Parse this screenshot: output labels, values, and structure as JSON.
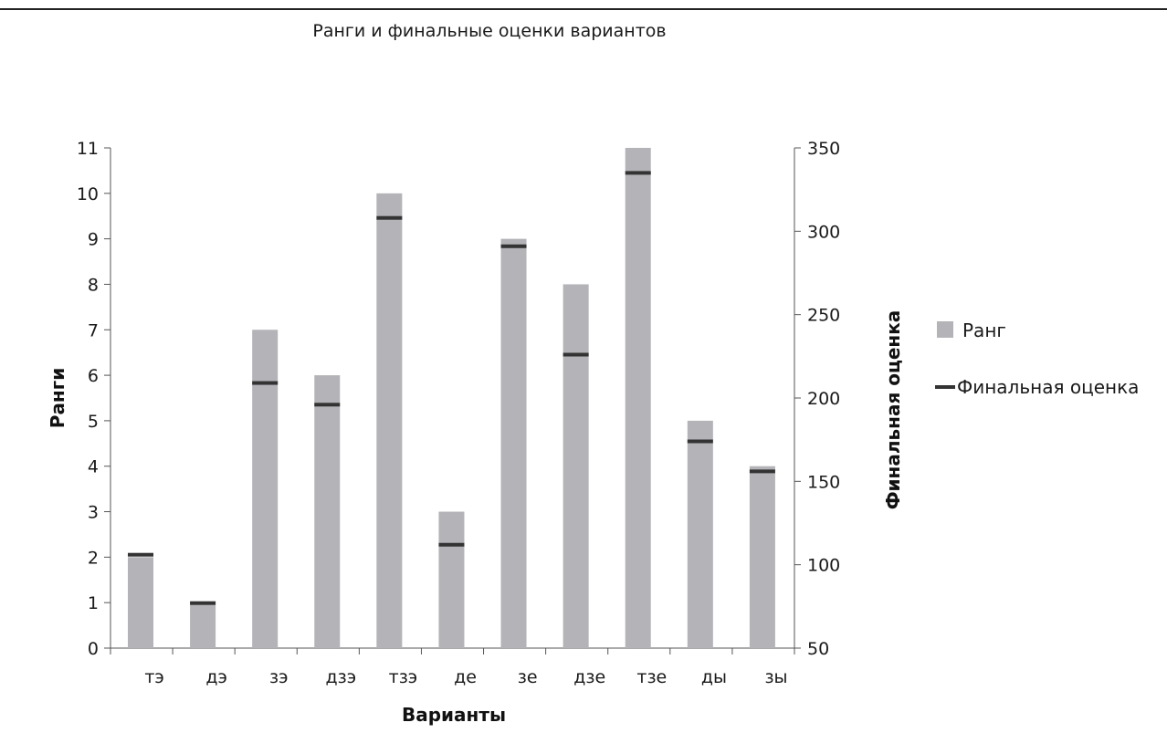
{
  "chart_data": {
    "type": "bar",
    "title": "Ранги и финальные оценки вариантов",
    "xlabel": "Варианты",
    "ylabel": "Ранги",
    "y2label": "Финальная оценка",
    "categories": [
      "тэ",
      "дэ",
      "зэ",
      "дзэ",
      "тзэ",
      "де",
      "зе",
      "дзе",
      "тзе",
      "ды",
      "зы"
    ],
    "ylim": [
      0,
      11
    ],
    "y_ticks": [
      "0",
      "1",
      "2",
      "3",
      "4",
      "5",
      "6",
      "7",
      "8",
      "9",
      "10",
      "11"
    ],
    "y2lim": [
      50,
      350
    ],
    "y2_ticks": [
      "50",
      "100",
      "150",
      "200",
      "250",
      "300",
      "350"
    ],
    "series": [
      {
        "name": "Ранг",
        "kind": "bar",
        "axis": "left",
        "color": "#b3b3b8",
        "values": [
          2,
          1,
          7,
          6,
          10,
          3,
          9,
          8,
          11,
          5,
          4
        ]
      },
      {
        "name": "Финальная оценка",
        "kind": "marker",
        "axis": "right",
        "color": "#333333",
        "values": [
          106,
          77,
          209,
          196,
          308,
          112,
          291,
          226,
          335,
          174,
          156
        ]
      }
    ],
    "legend_position": "right",
    "grid": false
  }
}
